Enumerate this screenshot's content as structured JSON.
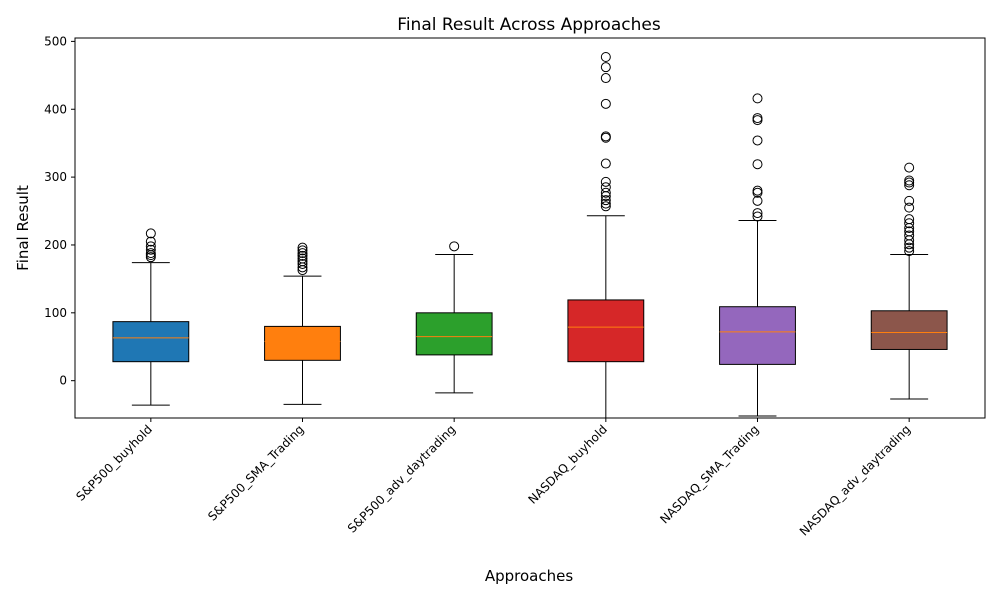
{
  "chart_data": {
    "type": "box",
    "title": "Final Result Across Approaches",
    "xlabel": "Approaches",
    "ylabel": "Final Result",
    "ylim": [
      -55,
      505
    ],
    "yticks": [
      0,
      100,
      200,
      300,
      400,
      500
    ],
    "grid": false,
    "legend": "none",
    "median_color": "#ff7f0e",
    "categories": [
      "S&P500_buyhold",
      "S&P500_SMA_Trading",
      "S&P500_adv_daytrading",
      "NASDAQ_buyhold",
      "NASDAQ_SMA_Trading",
      "NASDAQ_adv_daytrading"
    ],
    "series": [
      {
        "color": "#1f77b4",
        "whisker_low": -36,
        "q1": 28,
        "median": 63,
        "q3": 87,
        "whisker_high": 174,
        "outliers": [
          182,
          185,
          188,
          193,
          198,
          205,
          217
        ]
      },
      {
        "color": "#ff7f0e",
        "whisker_low": -35,
        "q1": 30,
        "median": 58,
        "q3": 80,
        "whisker_high": 154,
        "outliers": [
          163,
          167,
          172,
          176,
          180,
          184,
          188,
          192,
          196
        ]
      },
      {
        "color": "#2ca02c",
        "whisker_low": -18,
        "q1": 38,
        "median": 65,
        "q3": 100,
        "whisker_high": 186,
        "outliers": [
          198
        ]
      },
      {
        "color": "#d62728",
        "whisker_low": -55,
        "q1": 28,
        "median": 79,
        "q3": 119,
        "whisker_high": 243,
        "outliers": [
          257,
          261,
          266,
          272,
          277,
          285,
          293,
          320,
          358,
          360,
          408,
          446,
          462,
          477
        ]
      },
      {
        "color": "#9467bd",
        "whisker_low": -52,
        "q1": 24,
        "median": 72,
        "q3": 109,
        "whisker_high": 236,
        "outliers": [
          242,
          247,
          265,
          277,
          280,
          319,
          354,
          384,
          387,
          416
        ]
      },
      {
        "color": "#8c564b",
        "whisker_low": -27,
        "q1": 46,
        "median": 71,
        "q3": 103,
        "whisker_high": 186,
        "outliers": [
          191,
          196,
          201,
          207,
          214,
          220,
          225,
          232,
          238,
          255,
          265,
          288,
          292,
          295,
          314
        ]
      }
    ]
  }
}
